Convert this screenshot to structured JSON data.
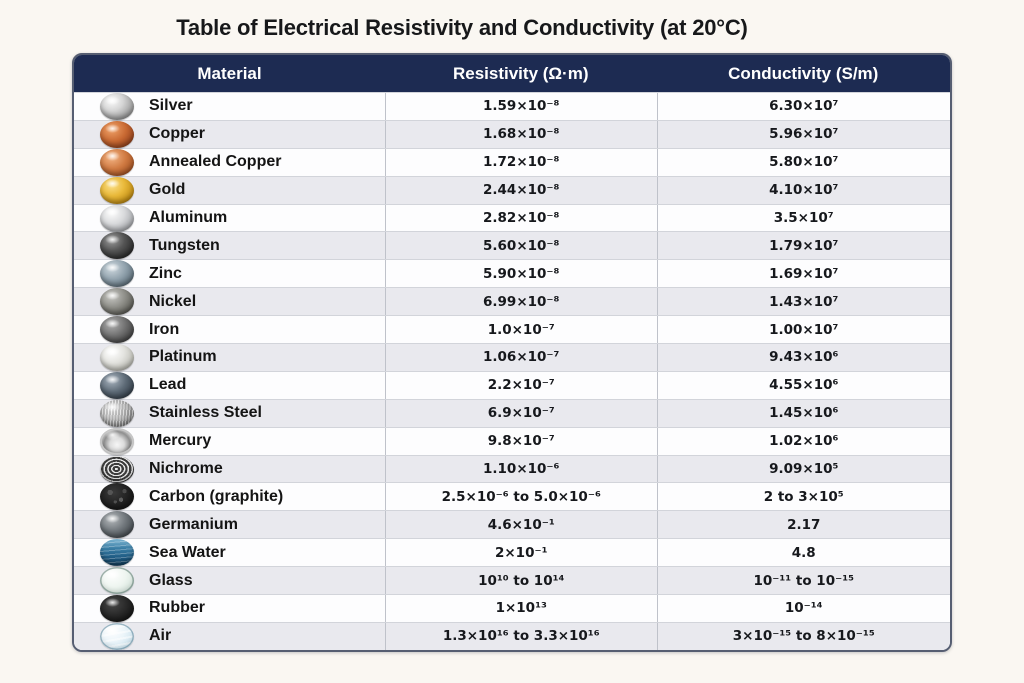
{
  "page": {
    "title": "Table of Electrical Resistivity and Conductivity (at 20°C)",
    "background": "#faf7f2"
  },
  "table": {
    "header": {
      "material": "Material",
      "resistivity": "Resistivity (Ω·m)",
      "conductivity": "Conductivity (S/m)"
    },
    "icon_keys": [
      "silver",
      "copper",
      "annealed-copper",
      "gold",
      "aluminum",
      "tungsten",
      "zinc",
      "nickel",
      "iron",
      "platinum",
      "lead",
      "stainless-steel",
      "mercury",
      "nichrome",
      "carbon-graphite",
      "germanium",
      "sea-water",
      "glass",
      "rubber",
      "air"
    ],
    "colors": {
      "header_bg": "#1d2b52",
      "header_text": "#ffffff",
      "row_base": "#fdfdfe",
      "row_alt": "#e9e9ee",
      "outer_border": "#565e72"
    }
  },
  "chart_data": {
    "type": "table",
    "title": "Table of Electrical Resistivity and Conductivity (at 20°C)",
    "columns": [
      "Material",
      "Resistivity (Ω·m)",
      "Conductivity (S/m)"
    ],
    "rows": [
      [
        "Silver",
        "1.59×10⁻⁸",
        "6.30×10⁷"
      ],
      [
        "Copper",
        "1.68×10⁻⁸",
        "5.96×10⁷"
      ],
      [
        "Annealed Copper",
        "1.72×10⁻⁸",
        "5.80×10⁷"
      ],
      [
        "Gold",
        "2.44×10⁻⁸",
        "4.10×10⁷"
      ],
      [
        "Aluminum",
        "2.82×10⁻⁸",
        "3.5×10⁷"
      ],
      [
        "Tungsten",
        "5.60×10⁻⁸",
        "1.79×10⁷"
      ],
      [
        "Zinc",
        "5.90×10⁻⁸",
        "1.69×10⁷"
      ],
      [
        "Nickel",
        "6.99×10⁻⁸",
        "1.43×10⁷"
      ],
      [
        "Iron",
        "1.0×10⁻⁷",
        "1.00×10⁷"
      ],
      [
        "Platinum",
        "1.06×10⁻⁷",
        "9.43×10⁶"
      ],
      [
        "Lead",
        "2.2×10⁻⁷",
        "4.55×10⁶"
      ],
      [
        "Stainless Steel",
        "6.9×10⁻⁷",
        "1.45×10⁶"
      ],
      [
        "Mercury",
        "9.8×10⁻⁷",
        "1.02×10⁶"
      ],
      [
        "Nichrome",
        "1.10×10⁻⁶",
        "9.09×10⁵"
      ],
      [
        "Carbon (graphite)",
        "2.5×10⁻⁶ to 5.0×10⁻⁶",
        "2 to 3×10⁵"
      ],
      [
        "Germanium",
        "4.6×10⁻¹",
        "2.17"
      ],
      [
        "Sea Water",
        "2×10⁻¹",
        "4.8"
      ],
      [
        "Glass",
        "10¹⁰ to 10¹⁴",
        "10⁻¹¹ to 10⁻¹⁵"
      ],
      [
        "Rubber",
        "1×10¹³",
        "10⁻¹⁴"
      ],
      [
        "Air",
        "1.3×10¹⁶ to 3.3×10¹⁶",
        "3×10⁻¹⁵ to 8×10⁻¹⁵"
      ]
    ]
  }
}
